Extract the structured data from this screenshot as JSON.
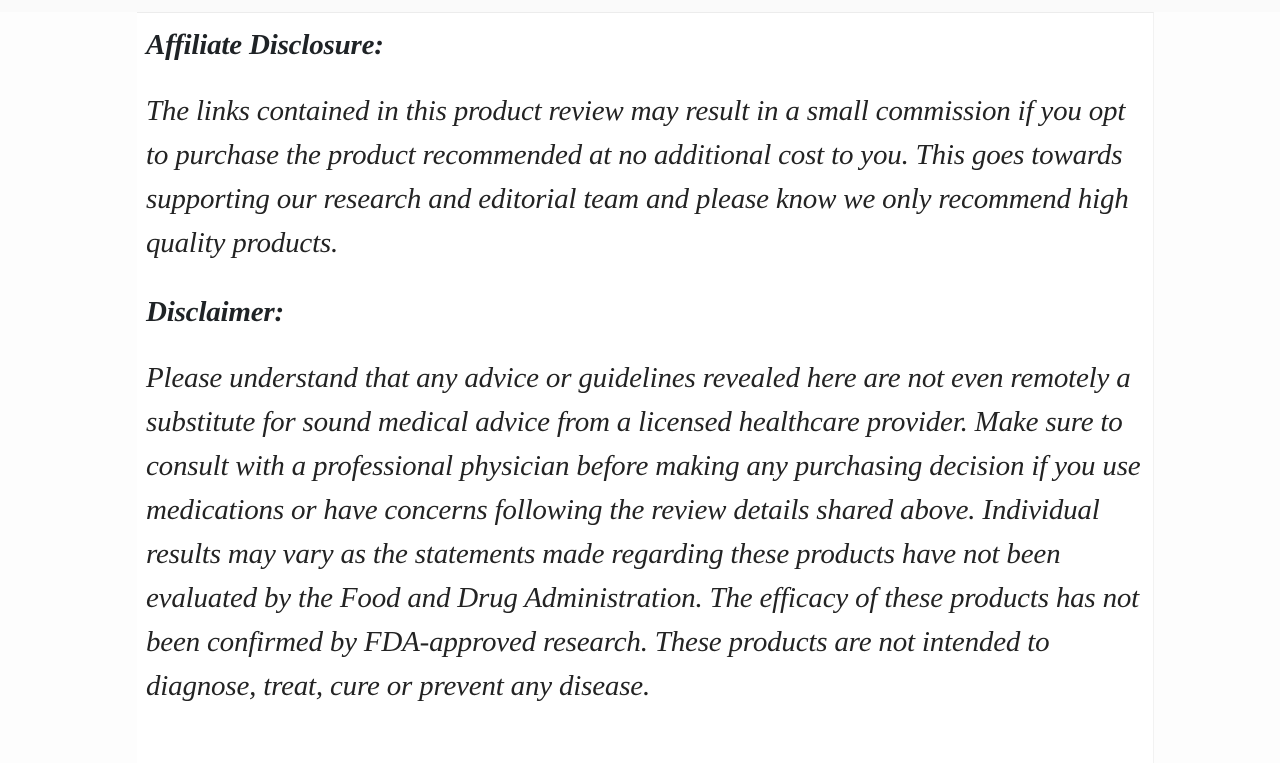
{
  "page": {
    "background_color": "#fdfdfd",
    "card_background_color": "#ffffff",
    "edge_border_color": "#ececec",
    "text_color": "#232323"
  },
  "article": {
    "sections": [
      {
        "heading": "Affiliate Disclosure:",
        "paragraph": "The links contained in this product review may result in a small commission if you opt to purchase the product recommended at no additional cost to you. This goes towards supporting our research and editorial team and please know we only recommend high quality products."
      },
      {
        "heading": "Disclaimer:",
        "paragraph": "Please understand that any advice or guidelines revealed here are not even remotely a substitute for sound medical advice from a licensed healthcare provider. Make sure to consult with a professional physician before making any purchasing decision if you use medications or have concerns following the review details shared above. Individual results may vary as the statements made regarding these products have not been evaluated by the Food and Drug Administration. The efficacy of these products has not been confirmed by FDA-approved research. These products are not intended to diagnose, treat, cure or prevent any disease."
      }
    ]
  }
}
